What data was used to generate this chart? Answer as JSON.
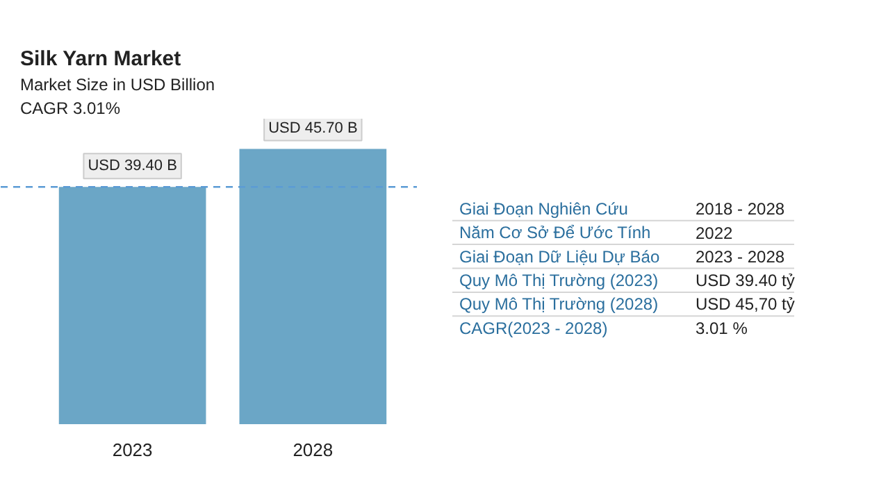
{
  "chart_data": [
    {
      "type": "bar",
      "title": "Silk Yarn Market",
      "subtitle": "Market Size in USD Billion",
      "annotations": [
        "CAGR 3.01%"
      ],
      "categories": [
        "2023",
        "2028"
      ],
      "values": [
        39.4,
        45.7
      ],
      "color": "#6ba6c6",
      "value_labels": [
        "USD 39.40 B",
        "USD 45.70 B"
      ],
      "ref_lines": [
        {
          "axis": "y",
          "value": 39.4,
          "color": "#5b9bd5",
          "line_style": "dashed"
        }
      ]
    },
    {
      "type": "other",
      "annotations": [
        "Giai Đoạn Nghiên Cứu",
        "2018 - 2028",
        "Năm Cơ Sở Để Ước Tính",
        "2022",
        "Giai Đoạn Dữ Liệu Dự Báo",
        "2023 - 2028",
        "Quy Mô Thị Trường (2023)",
        "USD 39.40 tỷ",
        "Quy Mô Thị Trường (2028)",
        "USD 45,70 tỷ",
        "CAGR(2023 - 2028)",
        "3.01 %"
      ]
    }
  ]
}
